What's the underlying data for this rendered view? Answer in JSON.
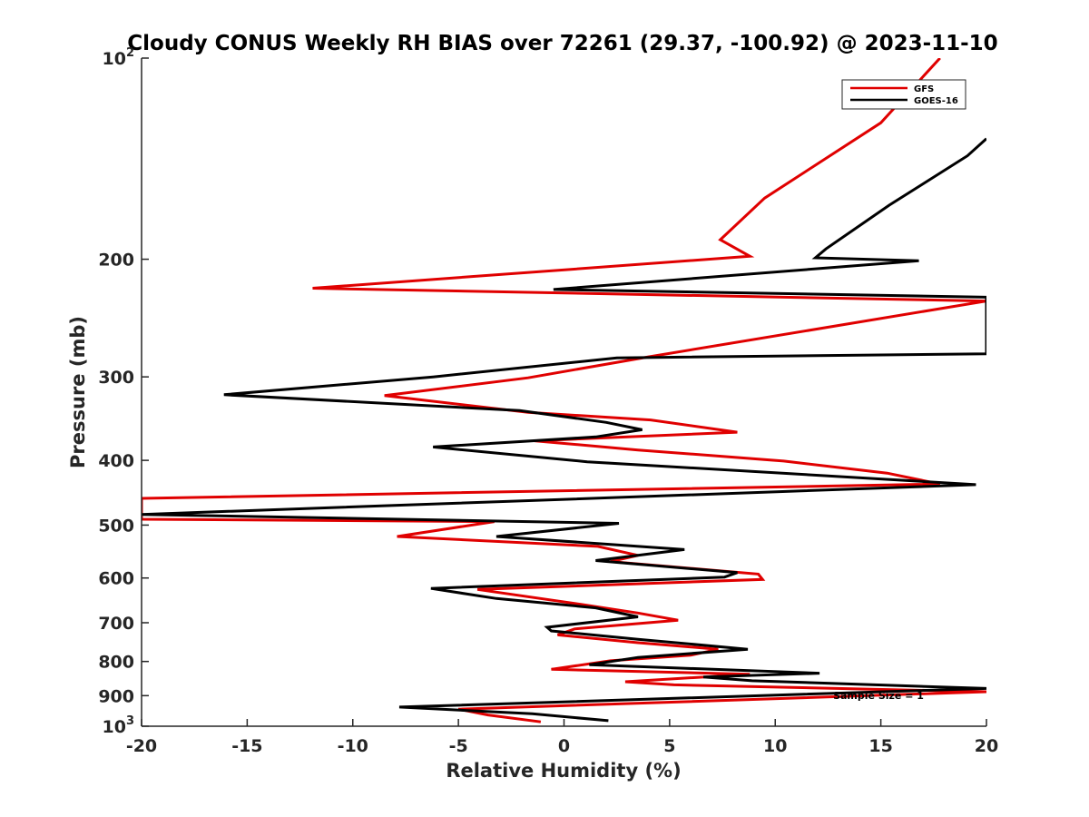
{
  "chart_data": {
    "type": "line",
    "title": "Cloudy CONUS Weekly RH BIAS over 72261 (29.37, -100.92) @ 2023-11-10",
    "xlabel": "Relative Humidity (%)",
    "ylabel": "Pressure (mb)",
    "xlim": [
      -20,
      20
    ],
    "ylim": [
      100,
      1000
    ],
    "y_scale": "log",
    "y_reversed": true,
    "grid": false,
    "legend_position": "top-right",
    "x_ticks": [
      -20,
      -15,
      -10,
      -5,
      0,
      5,
      10,
      15,
      20
    ],
    "x_tick_labels": [
      "-20",
      "-15",
      "-10",
      "-5",
      "0",
      "5",
      "10",
      "15",
      "20"
    ],
    "y_ticks": [
      {
        "value": 100,
        "base": "10",
        "exp": "2"
      },
      {
        "value": 200,
        "base": "200",
        "exp": ""
      },
      {
        "value": 300,
        "base": "300",
        "exp": ""
      },
      {
        "value": 400,
        "base": "400",
        "exp": ""
      },
      {
        "value": 500,
        "base": "500",
        "exp": ""
      },
      {
        "value": 600,
        "base": "600",
        "exp": ""
      },
      {
        "value": 700,
        "base": "700",
        "exp": ""
      },
      {
        "value": 800,
        "base": "800",
        "exp": ""
      },
      {
        "value": 900,
        "base": "900",
        "exp": ""
      },
      {
        "value": 1000,
        "base": "10",
        "exp": "3"
      }
    ],
    "annotation": "Sample Size = 1",
    "series": [
      {
        "name": "GFS",
        "color": "#e00000",
        "points": [
          [
            17.8,
            100
          ],
          [
            15.0,
            125
          ],
          [
            9.5,
            162
          ],
          [
            7.4,
            187
          ],
          [
            8.8,
            198
          ],
          [
            -11.9,
            221
          ],
          [
            20.0,
            231
          ],
          [
            4.0,
            280
          ],
          [
            -1.7,
            301
          ],
          [
            -8.5,
            320
          ],
          [
            -1.7,
            339
          ],
          [
            4.1,
            348
          ],
          [
            8.2,
            363
          ],
          [
            -1.4,
            374
          ],
          [
            3.5,
            386
          ],
          [
            10.4,
            401
          ],
          [
            15.3,
            418
          ],
          [
            17.8,
            434
          ],
          [
            -20.0,
            456
          ],
          [
            -20.0,
            490
          ],
          [
            -3.3,
            494
          ],
          [
            -7.9,
            520
          ],
          [
            1.6,
            538
          ],
          [
            3.5,
            555
          ],
          [
            2.2,
            567
          ],
          [
            9.2,
            592
          ],
          [
            9.4,
            603
          ],
          [
            -4.1,
            624
          ],
          [
            0.8,
            657
          ],
          [
            3.5,
            677
          ],
          [
            5.4,
            694
          ],
          [
            0.5,
            715
          ],
          [
            -0.3,
            730
          ],
          [
            3.5,
            750
          ],
          [
            7.3,
            767
          ],
          [
            6.0,
            783
          ],
          [
            2.2,
            798
          ],
          [
            -0.6,
            822
          ],
          [
            8.8,
            836
          ],
          [
            2.9,
            858
          ],
          [
            5.2,
            867
          ],
          [
            20.0,
            888
          ],
          [
            -5.0,
            943
          ],
          [
            -3.6,
            962
          ],
          [
            -1.1,
            985
          ]
        ]
      },
      {
        "name": "GOES-16",
        "color": "#000000",
        "points": [
          [
            20.0,
            132
          ],
          [
            19.1,
            140
          ],
          [
            15.4,
            166
          ],
          [
            12.4,
            193
          ],
          [
            11.9,
            199
          ],
          [
            16.8,
            201
          ],
          [
            -0.5,
            222
          ],
          [
            20.0,
            228
          ],
          [
            20.0,
            277
          ],
          [
            2.5,
            281
          ],
          [
            -6.2,
            300
          ],
          [
            -16.1,
            319
          ],
          [
            -2.1,
            337
          ],
          [
            2.0,
            351
          ],
          [
            3.7,
            360
          ],
          [
            1.5,
            369
          ],
          [
            -6.2,
            382
          ],
          [
            1.1,
            402
          ],
          [
            12.5,
            422
          ],
          [
            19.5,
            435
          ],
          [
            -20.0,
            482
          ],
          [
            2.6,
            497
          ],
          [
            -3.2,
            520
          ],
          [
            5.7,
            544
          ],
          [
            1.5,
            565
          ],
          [
            8.2,
            589
          ],
          [
            7.6,
            598
          ],
          [
            -6.3,
            622
          ],
          [
            -3.2,
            644
          ],
          [
            1.5,
            665
          ],
          [
            3.5,
            686
          ],
          [
            -0.8,
            711
          ],
          [
            -0.6,
            720
          ],
          [
            3.5,
            741
          ],
          [
            8.7,
            767
          ],
          [
            3.5,
            789
          ],
          [
            1.2,
            809
          ],
          [
            12.1,
            833
          ],
          [
            6.6,
            844
          ],
          [
            8.9,
            855
          ],
          [
            20.0,
            878
          ],
          [
            -7.8,
            936
          ],
          [
            -1.5,
            958
          ],
          [
            2.1,
            981
          ]
        ]
      }
    ]
  }
}
